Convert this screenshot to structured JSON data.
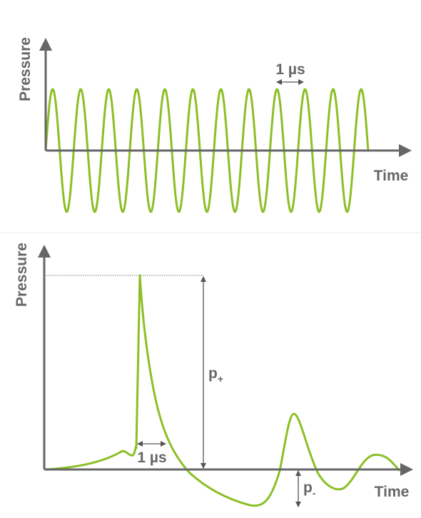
{
  "top": {
    "y_label": "Pressure",
    "x_label": "Time",
    "interval_label": "1 µs"
  },
  "bottom": {
    "y_label": "Pressure",
    "x_label": "Time",
    "interval_label": "1 µs",
    "peak_positive": {
      "symbol": "p",
      "subscript": "+"
    },
    "peak_negative": {
      "symbol": "p",
      "subscript": "-"
    }
  }
}
